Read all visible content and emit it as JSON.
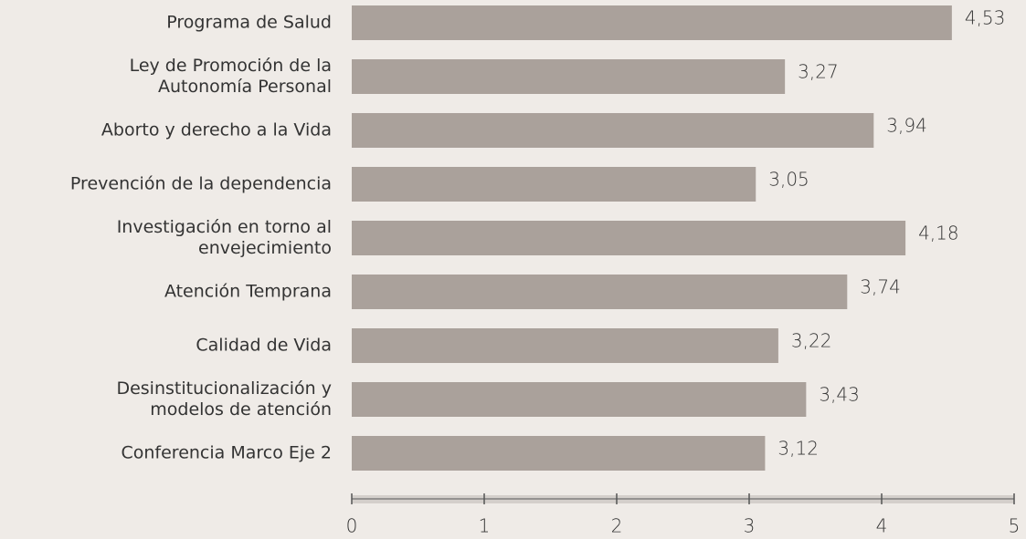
{
  "chart_data": {
    "type": "barh",
    "categories": [
      "Programa de Salud",
      "Ley de Promoción de la\nAutonomía Personal",
      "Aborto y derecho a la Vida",
      "Prevención de la dependencia",
      "Investigación en torno al\nenvejecimiento",
      "Atención Temprana",
      "Calidad de Vida",
      "Desinstitucionalización y\nmodelos de atención",
      "Conferencia Marco Eje 2"
    ],
    "values": [
      4.53,
      3.27,
      3.94,
      3.05,
      4.18,
      3.74,
      3.22,
      3.43,
      3.12
    ],
    "value_labels": [
      "4,53",
      "3,27",
      "3,94",
      "3,05",
      "4,18",
      "3,74",
      "3,22",
      "3,43",
      "3,12"
    ],
    "color": "#aaa19b",
    "xlim": [
      0,
      5
    ],
    "xticks": [
      0,
      1,
      2,
      3,
      4,
      5
    ],
    "grid": false
  }
}
